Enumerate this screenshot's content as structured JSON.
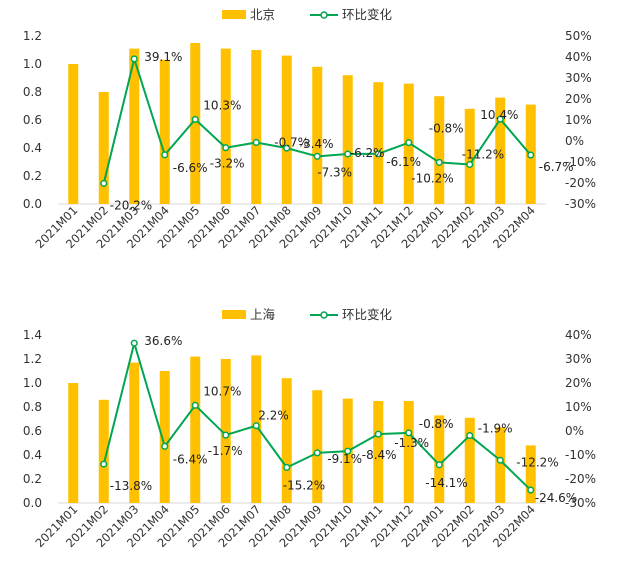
{
  "colors": {
    "bar": "#FFC000",
    "line": "#00A651",
    "point_fill": "#FFFFFF"
  },
  "chart_data": [
    {
      "type": "bar+line",
      "series": [
        {
          "name": "北京",
          "type": "bar",
          "axis": "left",
          "values": [
            1.0,
            0.8,
            1.11,
            1.03,
            1.15,
            1.11,
            1.1,
            1.06,
            0.98,
            0.92,
            0.87,
            0.86,
            0.77,
            0.68,
            0.76,
            0.71
          ]
        },
        {
          "name": "环比变化",
          "type": "line",
          "axis": "right",
          "values": [
            null,
            -20.2,
            39.1,
            -6.6,
            10.3,
            -3.2,
            -0.7,
            -3.4,
            -7.3,
            -6.2,
            -6.1,
            -0.8,
            -10.2,
            -11.2,
            10.4,
            -6.7
          ],
          "labels": [
            "",
            "-20.2%",
            "39.1%",
            "-6.6%",
            "10.3%",
            "-3.2%",
            "-0.7%",
            "-3.4%",
            "-7.3%",
            "-6.2%",
            "-6.1%",
            "-0.8%",
            "-10.2%",
            "-11.2%",
            "10.4%",
            "-6.7%"
          ]
        }
      ],
      "categories": [
        "2021M01",
        "2021M02",
        "2021M03",
        "2021M04",
        "2021M05",
        "2021M06",
        "2021M07",
        "2021M08",
        "2021M09",
        "2021M10",
        "2021M11",
        "2021M12",
        "2022M01",
        "2022M02",
        "2022M03",
        "2022M04"
      ],
      "y_left": {
        "min": 0,
        "max": 1.2,
        "ticks": [
          "0.0",
          "0.2",
          "0.4",
          "0.6",
          "0.8",
          "1.0",
          "1.2"
        ]
      },
      "y_right": {
        "min": -30,
        "max": 50,
        "ticks": [
          "-30%",
          "-20%",
          "-10%",
          "0%",
          "10%",
          "20%",
          "30%",
          "40%",
          "50%"
        ]
      },
      "legend_position": "top-center"
    },
    {
      "type": "bar+line",
      "series": [
        {
          "name": "上海",
          "type": "bar",
          "axis": "left",
          "values": [
            1.0,
            0.86,
            1.17,
            1.1,
            1.22,
            1.2,
            1.23,
            1.04,
            0.94,
            0.87,
            0.85,
            0.85,
            0.73,
            0.71,
            0.63,
            0.48
          ]
        },
        {
          "name": "环比变化",
          "type": "line",
          "axis": "right",
          "values": [
            null,
            -13.8,
            36.6,
            -6.4,
            10.7,
            -1.7,
            2.2,
            -15.2,
            -9.1,
            -8.4,
            -1.3,
            -0.8,
            -14.1,
            -1.9,
            -12.2,
            -24.6
          ],
          "labels": [
            "",
            "-13.8%",
            "36.6%",
            "-6.4%",
            "10.7%",
            "-1.7%",
            "2.2%",
            "-15.2%",
            "-9.1%",
            "-8.4%",
            "-1.3%",
            "-0.8%",
            "-14.1%",
            "-1.9%",
            "-12.2%",
            "-24.6%"
          ]
        }
      ],
      "categories": [
        "2021M01",
        "2021M02",
        "2021M03",
        "2021M04",
        "2021M05",
        "2021M06",
        "2021M07",
        "2021M08",
        "2021M09",
        "2021M10",
        "2021M11",
        "2021M12",
        "2022M01",
        "2022M02",
        "2022M03",
        "2022M04"
      ],
      "y_left": {
        "min": 0,
        "max": 1.4,
        "ticks": [
          "0.0",
          "0.2",
          "0.4",
          "0.6",
          "0.8",
          "1.0",
          "1.2",
          "1.4"
        ]
      },
      "y_right": {
        "min": -30,
        "max": 40,
        "ticks": [
          "-30%",
          "-20%",
          "-10%",
          "0%",
          "10%",
          "20%",
          "30%",
          "40%"
        ]
      },
      "legend_position": "top-center"
    }
  ]
}
